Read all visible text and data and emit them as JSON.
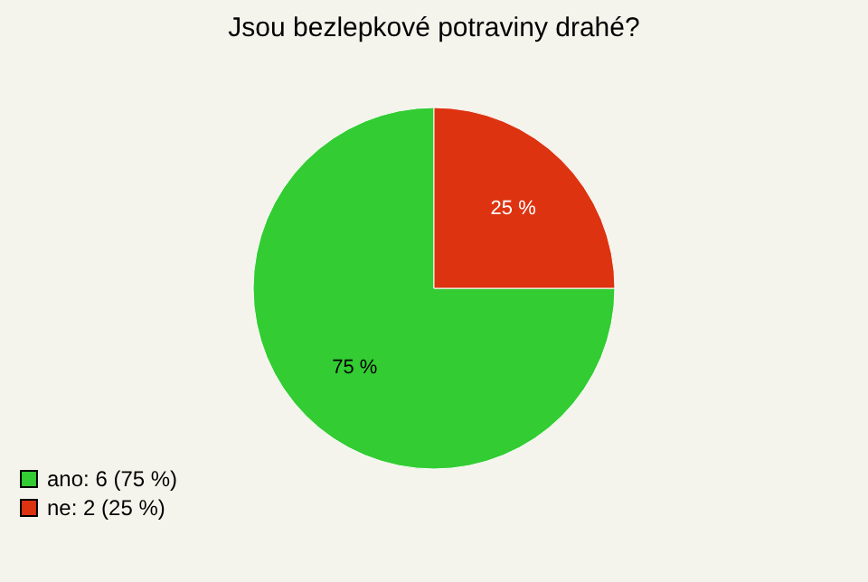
{
  "chart_data": {
    "type": "pie",
    "title": "Jsou bezlepkové potraviny drahé?",
    "categories": [
      "ano: 6 (75 %)",
      "ne: 2 (25 %)"
    ],
    "values": [
      75,
      25
    ],
    "colors": [
      "#33cc33",
      "#dd3311"
    ],
    "value_labels": [
      "75 %",
      "25 %"
    ],
    "legend": "bottom left"
  }
}
